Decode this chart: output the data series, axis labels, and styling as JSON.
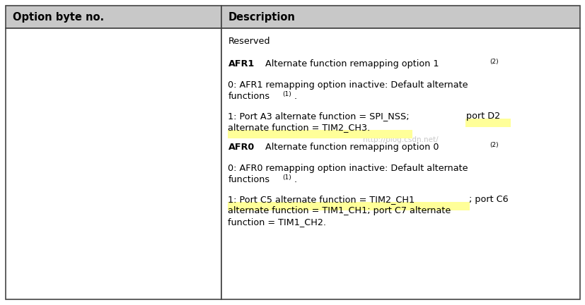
{
  "header_bg": "#c8c8c8",
  "cell_bg": "#ffffff",
  "border_color": "#444444",
  "highlight_yellow": "#ffff99",
  "watermark": "http://blog.csdn.net/",
  "watermark_color": "#bbbbbb",
  "col1_header": "Option byte no.",
  "col2_header": "Description",
  "figsize": [
    8.27,
    4.32
  ],
  "dpi": 100,
  "font_size_header": 10.5,
  "font_size_body": 9.2,
  "font_size_super": 6.5
}
